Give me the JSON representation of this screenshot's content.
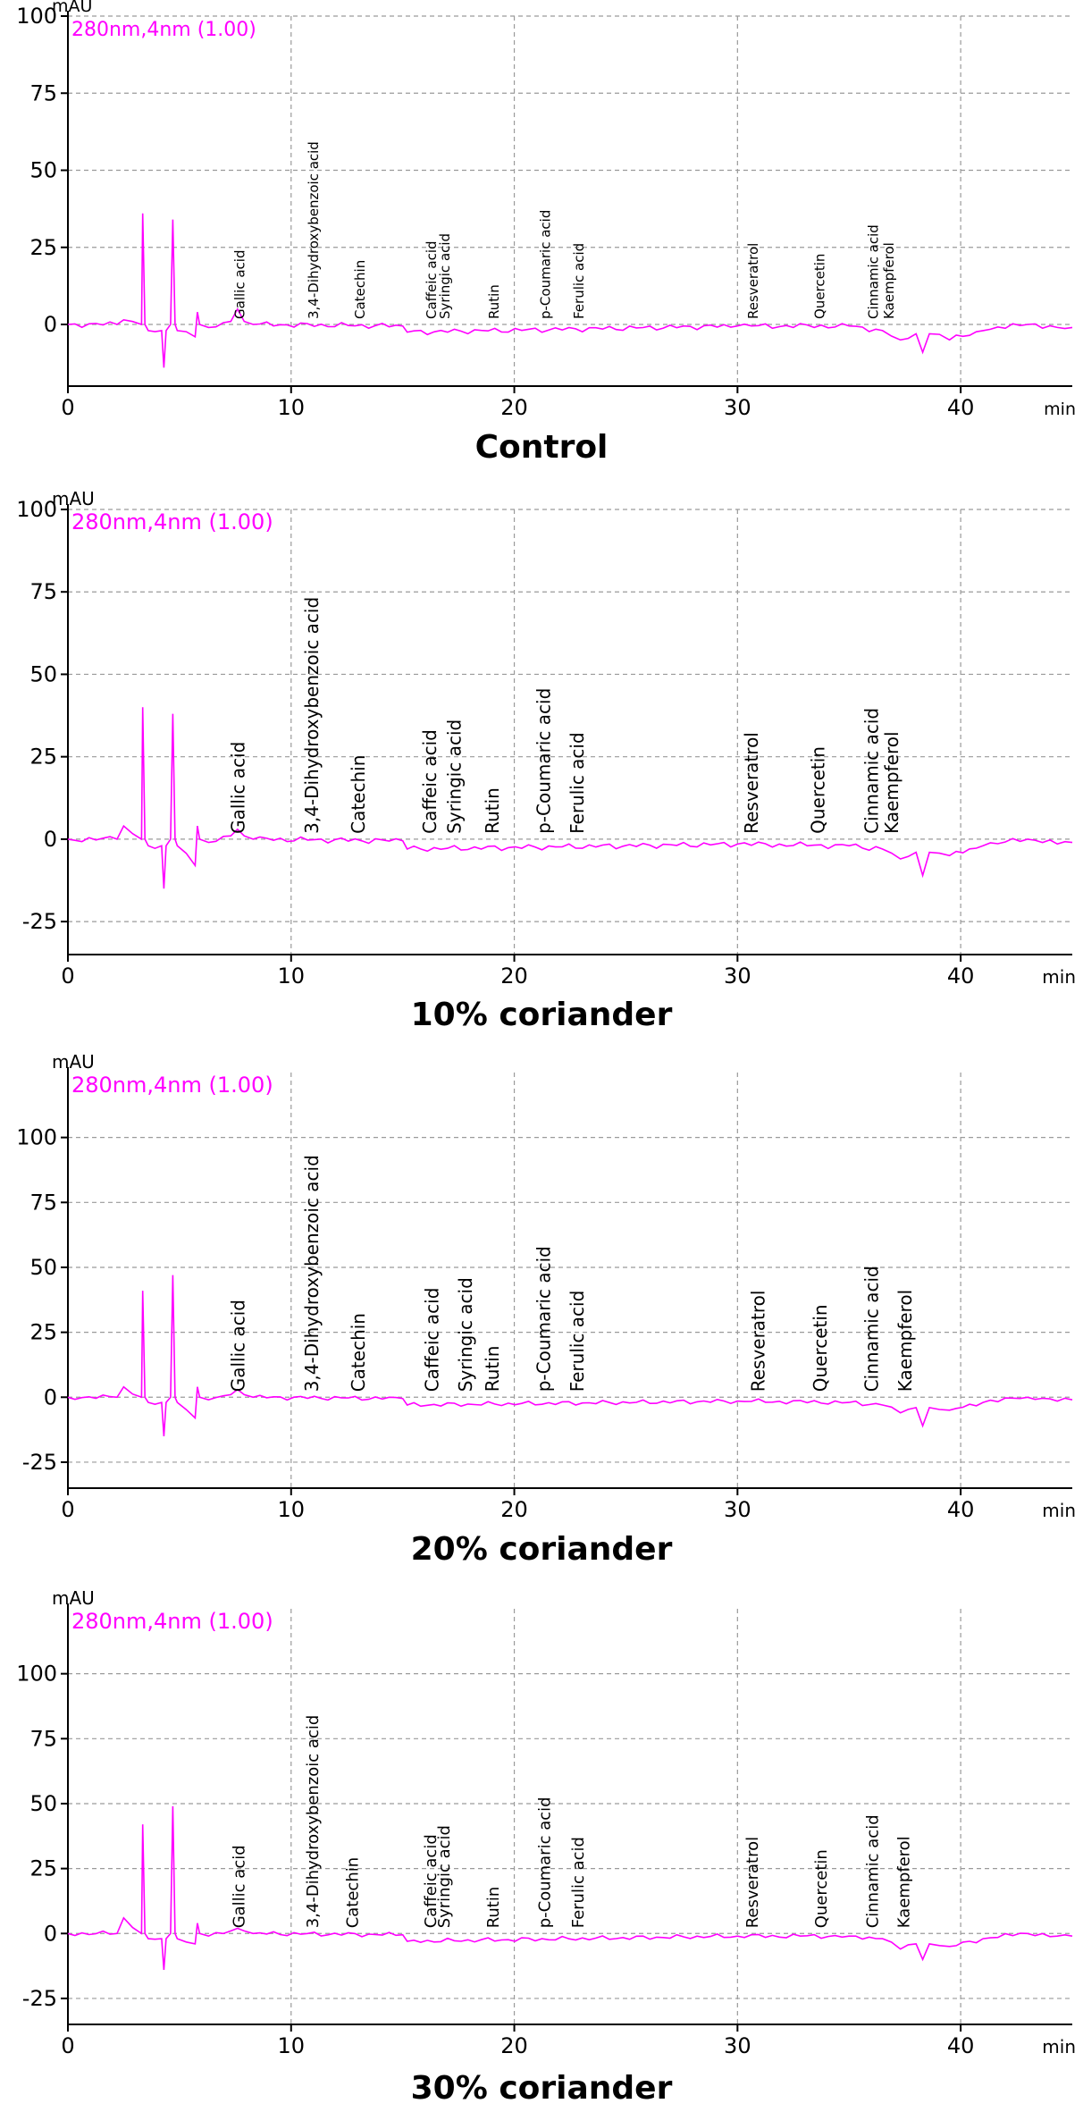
{
  "chart_data": [
    {
      "type": "line",
      "title": "Control",
      "ylabel": "mAU",
      "xlabel": "min",
      "trace_label": "280nm,4nm (1.00)",
      "xlim": [
        0,
        45
      ],
      "ylim": [
        -20,
        100
      ],
      "xticks": [
        0,
        10,
        20,
        30,
        40
      ],
      "yticks": [
        0,
        25,
        50,
        75,
        100
      ],
      "series": [
        {
          "name": "280nm,4nm (1.00)",
          "color": "#ff00ff",
          "x": [
            0,
            2.2,
            2.5,
            3.3,
            3.35,
            3.45,
            3.6,
            4.2,
            4.3,
            4.4,
            4.6,
            4.7,
            4.8,
            4.9,
            5.7,
            5.8,
            5.9,
            6.3,
            7.3,
            7.6,
            7.9,
            8.3,
            15.0,
            15.2,
            30,
            35,
            36.5,
            37.3,
            38.0,
            38.3,
            38.6,
            39.5,
            41,
            43,
            45
          ],
          "y": [
            0,
            0,
            1.5,
            0,
            36,
            0,
            -2,
            -2,
            -14,
            -2,
            0,
            34,
            0,
            -2,
            -4,
            4,
            0,
            -1,
            1,
            5,
            1,
            0,
            -0.5,
            -2.5,
            -0.5,
            -0.5,
            -2,
            -5,
            -3,
            -9,
            -3,
            -5,
            -2,
            0,
            -1
          ]
        }
      ],
      "annotations": [
        {
          "label": "Gallic acid",
          "x": 7.9
        },
        {
          "label": "3,4-Dihydroxybenzoic acid",
          "x": 11.2
        },
        {
          "label": "Catechin",
          "x": 13.3
        },
        {
          "label": "Caffeic acid",
          "x": 16.5
        },
        {
          "label": "Syringic acid",
          "x": 17.1
        },
        {
          "label": "Rutin",
          "x": 19.3
        },
        {
          "label": "p-Coumaric acid",
          "x": 21.6
        },
        {
          "label": "Ferulic acid",
          "x": 23.1
        },
        {
          "label": "Resveratrol",
          "x": 30.9
        },
        {
          "label": "Quercetin",
          "x": 33.9
        },
        {
          "label": "Cinnamic acid",
          "x": 36.3
        },
        {
          "label": "Kaempferol",
          "x": 37.0
        }
      ]
    },
    {
      "type": "line",
      "title": "10% coriander",
      "ylabel": "mAU",
      "xlabel": "min",
      "trace_label": "280nm,4nm (1.00)",
      "xlim": [
        0,
        45
      ],
      "ylim": [
        -35,
        100
      ],
      "xticks": [
        0,
        10,
        20,
        30,
        40
      ],
      "yticks": [
        -25,
        0,
        25,
        50,
        75,
        100
      ],
      "series": [
        {
          "name": "280nm,4nm (1.00)",
          "color": "#ff00ff",
          "x": [
            0,
            2.2,
            2.5,
            3.3,
            3.35,
            3.45,
            3.6,
            4.2,
            4.3,
            4.4,
            4.6,
            4.7,
            4.8,
            4.9,
            5.7,
            5.8,
            5.9,
            6.3,
            7.3,
            7.6,
            7.9,
            8.3,
            15.0,
            15.2,
            30,
            35,
            36.5,
            37.3,
            38.0,
            38.3,
            38.6,
            39.5,
            41,
            43,
            45
          ],
          "y": [
            0,
            0,
            4,
            0,
            40,
            0,
            -2,
            -2,
            -15,
            -2,
            0,
            38,
            0,
            -2,
            -8,
            4,
            0,
            -1,
            1,
            3,
            1,
            0,
            -0.5,
            -3,
            -1.5,
            -2,
            -3,
            -6,
            -4,
            -11,
            -4,
            -5,
            -2,
            0,
            -1
          ]
        }
      ],
      "annotations": [
        {
          "label": "Gallic acid",
          "x": 7.9
        },
        {
          "label": "3,4-Dihydroxybenzoic acid",
          "x": 11.2
        },
        {
          "label": "Catechin",
          "x": 13.3
        },
        {
          "label": "Caffeic acid",
          "x": 16.5
        },
        {
          "label": "Syringic acid",
          "x": 17.6
        },
        {
          "label": "Rutin",
          "x": 19.3
        },
        {
          "label": "p-Coumaric acid",
          "x": 21.6
        },
        {
          "label": "Ferulic acid",
          "x": 23.1
        },
        {
          "label": "Resveratrol",
          "x": 30.9
        },
        {
          "label": "Quercetin",
          "x": 33.9
        },
        {
          "label": "Cinnamic acid",
          "x": 36.3
        },
        {
          "label": "Kaempferol",
          "x": 37.2
        }
      ]
    },
    {
      "type": "line",
      "title": "20% coriander",
      "ylabel": "mAU",
      "xlabel": "min",
      "trace_label": "280nm,4nm (1.00)",
      "xlim": [
        0,
        45
      ],
      "ylim": [
        -35,
        125
      ],
      "xticks": [
        0,
        10,
        20,
        30,
        40
      ],
      "yticks": [
        -25,
        0,
        25,
        50,
        75,
        100
      ],
      "series": [
        {
          "name": "280nm,4nm (1.00)",
          "color": "#ff00ff",
          "x": [
            0,
            2.2,
            2.5,
            3.3,
            3.35,
            3.45,
            3.6,
            4.2,
            4.3,
            4.4,
            4.6,
            4.7,
            4.8,
            4.9,
            5.7,
            5.8,
            5.9,
            6.3,
            7.3,
            7.6,
            7.9,
            8.3,
            15.0,
            15.2,
            30,
            35,
            36.5,
            37.3,
            38.0,
            38.3,
            38.6,
            39.5,
            41,
            43,
            45
          ],
          "y": [
            0,
            0,
            4,
            0,
            41,
            0,
            -2,
            -2,
            -15,
            -2,
            0,
            47,
            0,
            -2,
            -8,
            4,
            0,
            -1,
            1,
            3,
            1,
            0,
            -0.5,
            -3,
            -1.5,
            -2,
            -3,
            -6,
            -4,
            -11,
            -4,
            -5,
            -2,
            0,
            -1
          ]
        }
      ],
      "annotations": [
        {
          "label": "Gallic acid",
          "x": 7.9
        },
        {
          "label": "3,4-Dihydroxybenzoic acid",
          "x": 11.2
        },
        {
          "label": "Catechin",
          "x": 13.3
        },
        {
          "label": "Caffeic acid",
          "x": 16.6
        },
        {
          "label": "Syringic acid",
          "x": 18.1
        },
        {
          "label": "Rutin",
          "x": 19.3
        },
        {
          "label": "p-Coumaric acid",
          "x": 21.6
        },
        {
          "label": "Ferulic acid",
          "x": 23.1
        },
        {
          "label": "Resveratrol",
          "x": 31.2
        },
        {
          "label": "Quercetin",
          "x": 34.0
        },
        {
          "label": "Cinnamic acid",
          "x": 36.3
        },
        {
          "label": "Kaempferol",
          "x": 37.8
        }
      ]
    },
    {
      "type": "line",
      "title": "30% coriander",
      "ylabel": "mAU",
      "xlabel": "min",
      "trace_label": "280nm,4nm (1.00)",
      "xlim": [
        0,
        45
      ],
      "ylim": [
        -35,
        125
      ],
      "xticks": [
        0,
        10,
        20,
        30,
        40
      ],
      "yticks": [
        -25,
        0,
        25,
        50,
        75,
        100
      ],
      "series": [
        {
          "name": "280nm,4nm (1.00)",
          "color": "#ff00ff",
          "x": [
            0,
            2.2,
            2.5,
            3.3,
            3.35,
            3.45,
            3.6,
            4.2,
            4.3,
            4.4,
            4.6,
            4.7,
            4.8,
            4.9,
            5.7,
            5.8,
            5.9,
            6.3,
            7.3,
            7.6,
            7.9,
            8.3,
            15.0,
            15.2,
            30,
            35,
            36.5,
            37.3,
            38.0,
            38.3,
            38.6,
            39.5,
            41,
            43,
            45
          ],
          "y": [
            0,
            0,
            6,
            0,
            42,
            0,
            -2,
            -2,
            -14,
            -2,
            0,
            49,
            0,
            -2,
            -4,
            4,
            0,
            -1,
            1,
            2,
            1,
            0,
            -0.5,
            -3,
            -1,
            -1,
            -2,
            -6,
            -4,
            -10,
            -4,
            -5,
            -2,
            0,
            -1
          ]
        }
      ],
      "annotations": [
        {
          "label": "Gallic acid",
          "x": 7.9
        },
        {
          "label": "3,4-Dihydroxybenzoic acid",
          "x": 11.2
        },
        {
          "label": "Catechin",
          "x": 13.0
        },
        {
          "label": "Caffeic acid",
          "x": 16.5
        },
        {
          "label": "Syringic acid",
          "x": 17.1
        },
        {
          "label": "Rutin",
          "x": 19.3
        },
        {
          "label": "p-Coumaric acid",
          "x": 21.6
        },
        {
          "label": "Ferulic acid",
          "x": 23.1
        },
        {
          "label": "Resveratrol",
          "x": 30.9
        },
        {
          "label": "Quercetin",
          "x": 34.0
        },
        {
          "label": "Cinnamic acid",
          "x": 36.3
        },
        {
          "label": "Kaempferol",
          "x": 37.7
        }
      ]
    }
  ]
}
